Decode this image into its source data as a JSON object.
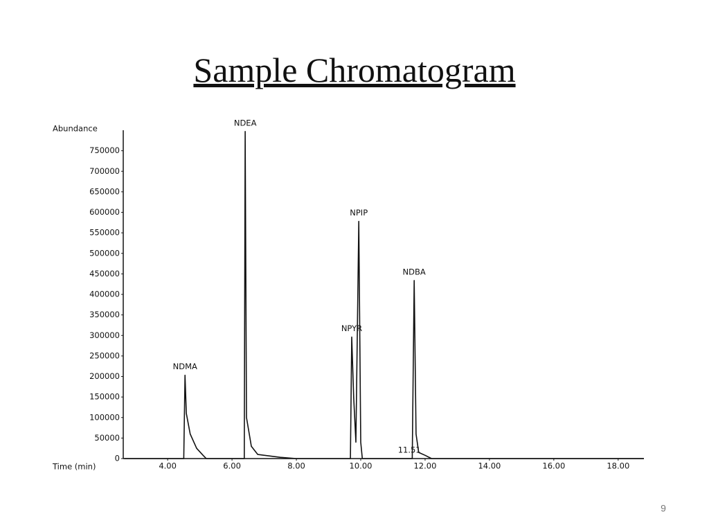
{
  "slide_title": "Sample Chromatogram",
  "page_number": "9",
  "chart_data": {
    "type": "line",
    "y_label": "Abundance",
    "x_label": "Time (min)",
    "series": [
      {
        "color": "#111111",
        "x": [
          2.65,
          4.5,
          4.54,
          4.58,
          4.7,
          4.9,
          5.1,
          5.2,
          6.38,
          6.41,
          6.45,
          6.6,
          6.8,
          7.5,
          8.0,
          9.68,
          9.72,
          9.78,
          9.85,
          9.94,
          10.0,
          10.05,
          11.6,
          11.66,
          11.72,
          11.8,
          12.0,
          12.2,
          18.8
        ],
        "values": [
          0,
          0,
          203000,
          110000,
          60000,
          25000,
          8000,
          0,
          0,
          797000,
          100000,
          30000,
          10000,
          3000,
          0,
          0,
          296000,
          150000,
          40000,
          578000,
          40000,
          0,
          0,
          434000,
          60000,
          15000,
          8000,
          0,
          0
        ]
      }
    ],
    "annotations": [
      {
        "text": "NDMA",
        "x": 4.54,
        "y": 203000
      },
      {
        "text": "NDEA",
        "x": 6.41,
        "y": 797000
      },
      {
        "text": "NPYR",
        "x": 9.72,
        "y": 296000
      },
      {
        "text": "NPIP",
        "x": 9.94,
        "y": 578000
      },
      {
        "text": "NDBA",
        "x": 11.66,
        "y": 434000
      },
      {
        "text": "11.51",
        "x": 11.51,
        "y": 0
      }
    ],
    "xlim": [
      2.62,
      18.8
    ],
    "ylim": [
      0,
      800000
    ],
    "xticks": [
      {
        "value": 4,
        "label": "4.00"
      },
      {
        "value": 6,
        "label": "6.00"
      },
      {
        "value": 8,
        "label": "8.00"
      },
      {
        "value": 10,
        "label": "10.00"
      },
      {
        "value": 12,
        "label": "12.00"
      },
      {
        "value": 14,
        "label": "14.00"
      },
      {
        "value": 16,
        "label": "16.00"
      },
      {
        "value": 18,
        "label": "18.00"
      }
    ],
    "yticks": [
      0,
      50000,
      100000,
      150000,
      200000,
      250000,
      300000,
      350000,
      400000,
      450000,
      500000,
      550000,
      600000,
      650000,
      700000,
      750000
    ],
    "grid": false
  }
}
